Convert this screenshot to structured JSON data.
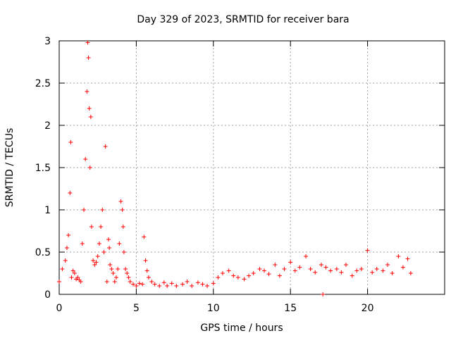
{
  "chart_data": {
    "type": "scatter",
    "title": "Day 329 of 2023, SRMTID for receiver bara",
    "xlabel": "GPS time / hours",
    "ylabel": "SRMTID / TECUs",
    "xlim": [
      0,
      25
    ],
    "ylim": [
      0,
      3
    ],
    "xticks": [
      0,
      5,
      10,
      15,
      20
    ],
    "yticks": [
      0,
      0.5,
      1,
      1.5,
      2,
      2.5,
      3
    ],
    "ytick_labels": [
      "0",
      "0.5",
      "1",
      "1.5",
      "2",
      "2.5",
      "3"
    ],
    "grid": true,
    "marker": "+",
    "color": "#ff0000",
    "series": [
      {
        "name": "SRMTID",
        "x": [
          0.0,
          0.2,
          0.4,
          0.5,
          0.6,
          0.7,
          0.75,
          0.8,
          0.9,
          1.0,
          1.1,
          1.2,
          1.3,
          1.4,
          1.5,
          1.6,
          1.7,
          1.8,
          1.85,
          1.9,
          1.95,
          2.0,
          2.05,
          2.1,
          2.2,
          2.3,
          2.4,
          2.5,
          2.6,
          2.7,
          2.8,
          2.9,
          3.0,
          3.1,
          3.2,
          3.25,
          3.3,
          3.4,
          3.5,
          3.6,
          3.7,
          3.8,
          3.9,
          4.0,
          4.1,
          4.15,
          4.2,
          4.3,
          4.4,
          4.5,
          4.6,
          4.8,
          5.0,
          5.2,
          5.4,
          5.5,
          5.6,
          5.7,
          5.8,
          6.0,
          6.2,
          6.5,
          6.8,
          7.0,
          7.3,
          7.6,
          8.0,
          8.3,
          8.6,
          9.0,
          9.3,
          9.6,
          10.0,
          10.3,
          10.6,
          11.0,
          11.3,
          11.6,
          12.0,
          12.3,
          12.6,
          13.0,
          13.3,
          13.6,
          14.0,
          14.3,
          14.6,
          15.0,
          15.3,
          15.6,
          16.0,
          16.3,
          16.6,
          17.0,
          17.1,
          17.3,
          17.6,
          18.0,
          18.3,
          18.6,
          19.0,
          19.3,
          19.6,
          20.0,
          20.3,
          20.6,
          21.0,
          21.3,
          21.6,
          22.0,
          22.3,
          22.6,
          22.8
        ],
        "y": [
          0.15,
          0.3,
          0.4,
          0.55,
          0.7,
          1.2,
          1.8,
          0.2,
          0.28,
          0.25,
          0.18,
          0.2,
          0.17,
          0.15,
          0.6,
          1.0,
          1.6,
          2.4,
          2.98,
          2.8,
          2.2,
          1.5,
          2.1,
          0.8,
          0.4,
          0.35,
          0.38,
          0.45,
          0.6,
          0.8,
          1.0,
          0.5,
          1.75,
          0.15,
          0.65,
          0.55,
          0.35,
          0.3,
          0.25,
          0.15,
          0.2,
          0.3,
          0.6,
          1.1,
          1.0,
          0.8,
          0.5,
          0.3,
          0.25,
          0.2,
          0.15,
          0.12,
          0.1,
          0.13,
          0.12,
          0.68,
          0.4,
          0.28,
          0.2,
          0.15,
          0.12,
          0.1,
          0.14,
          0.1,
          0.13,
          0.1,
          0.12,
          0.15,
          0.1,
          0.14,
          0.12,
          0.1,
          0.13,
          0.2,
          0.25,
          0.28,
          0.22,
          0.2,
          0.18,
          0.22,
          0.25,
          0.3,
          0.28,
          0.24,
          0.35,
          0.22,
          0.3,
          0.38,
          0.28,
          0.32,
          0.45,
          0.3,
          0.26,
          0.35,
          0.0,
          0.32,
          0.28,
          0.3,
          0.26,
          0.35,
          0.22,
          0.28,
          0.3,
          0.52,
          0.26,
          0.3,
          0.28,
          0.35,
          0.25,
          0.45,
          0.32,
          0.42,
          0.25
        ]
      }
    ]
  }
}
